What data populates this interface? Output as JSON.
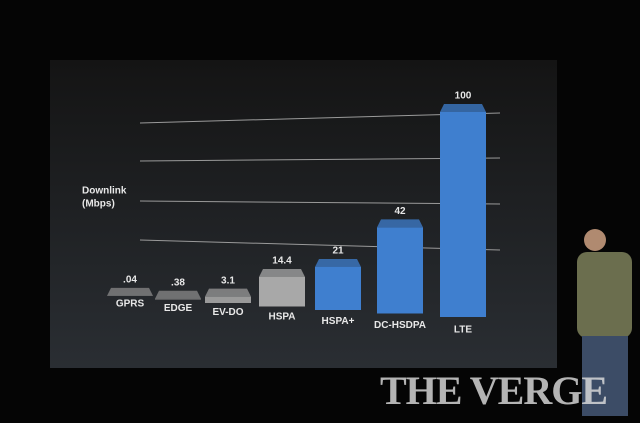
{
  "chart_data": {
    "type": "bar",
    "axis_label": [
      "Downlink",
      "(Mbps)"
    ],
    "categories": [
      "GPRS",
      "EDGE",
      "EV-DO",
      "HSPA",
      "HSPA+",
      "DC-HSDPA",
      "LTE"
    ],
    "values": [
      0.04,
      0.38,
      3.1,
      14.4,
      21,
      42,
      100
    ],
    "value_labels": [
      ".04",
      ".38",
      "3.1",
      "14.4",
      "21",
      "42",
      "100"
    ],
    "colors": [
      "#8a8a8a",
      "#8a8a8a",
      "#9a9a9a",
      "#a8a8a8",
      "#3f7fcf",
      "#3f7fcf",
      "#3f7fcf"
    ],
    "ylim": [
      0,
      100
    ]
  },
  "watermark": "THE VERGE"
}
